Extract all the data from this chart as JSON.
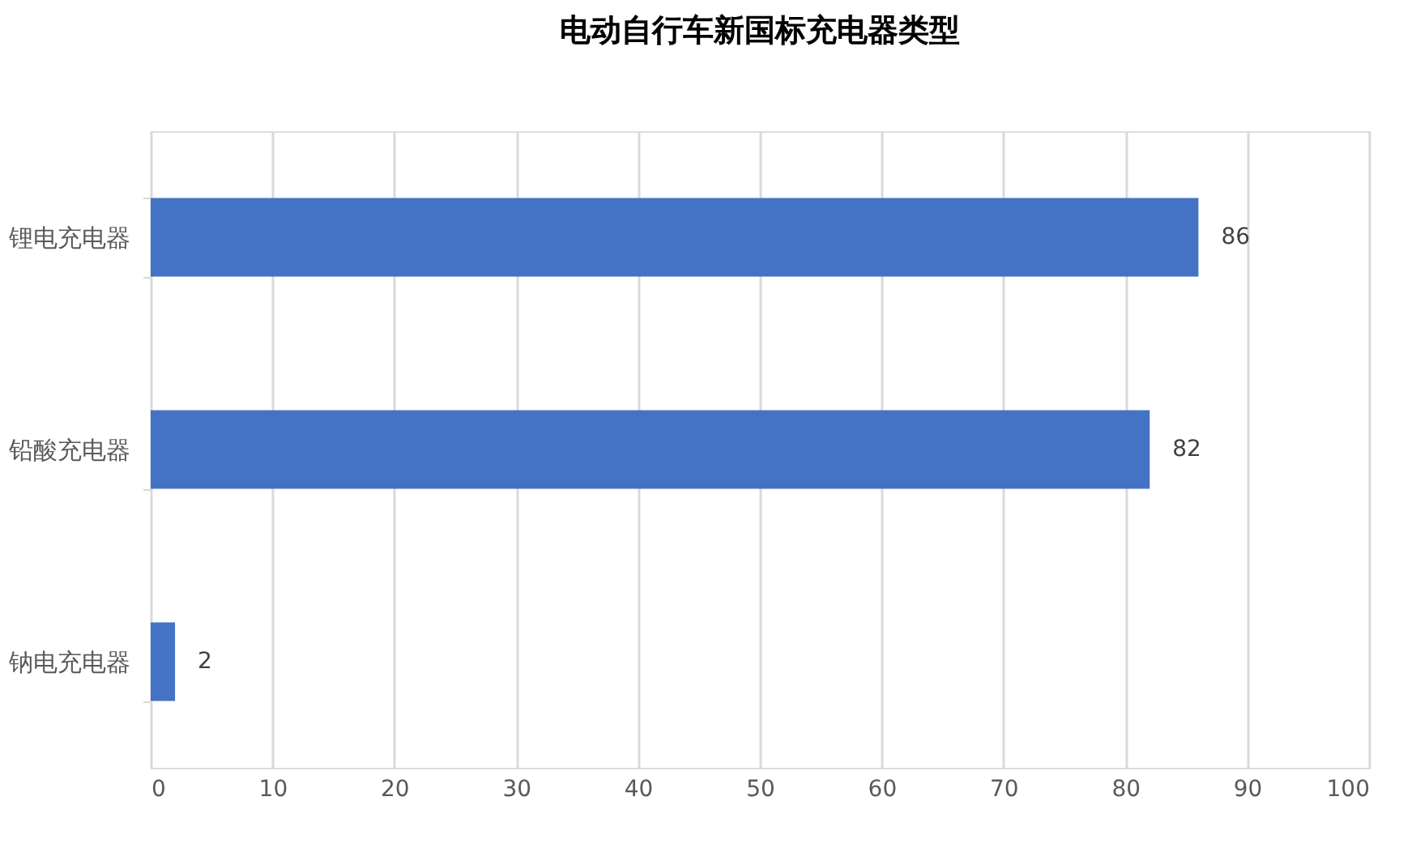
{
  "chart_data": {
    "type": "bar",
    "orientation": "horizontal",
    "title": "电动自行车新国标充电器类型",
    "categories": [
      "锂电充电器",
      "铅酸充电器",
      "钠电充电器"
    ],
    "values": [
      86,
      82,
      2
    ],
    "color": "#4472c4",
    "xlim": [
      0,
      100
    ],
    "xticks": [
      0,
      10,
      20,
      30,
      40,
      50,
      60,
      70,
      80,
      90,
      100
    ],
    "grid": "x",
    "data_labels": true
  }
}
